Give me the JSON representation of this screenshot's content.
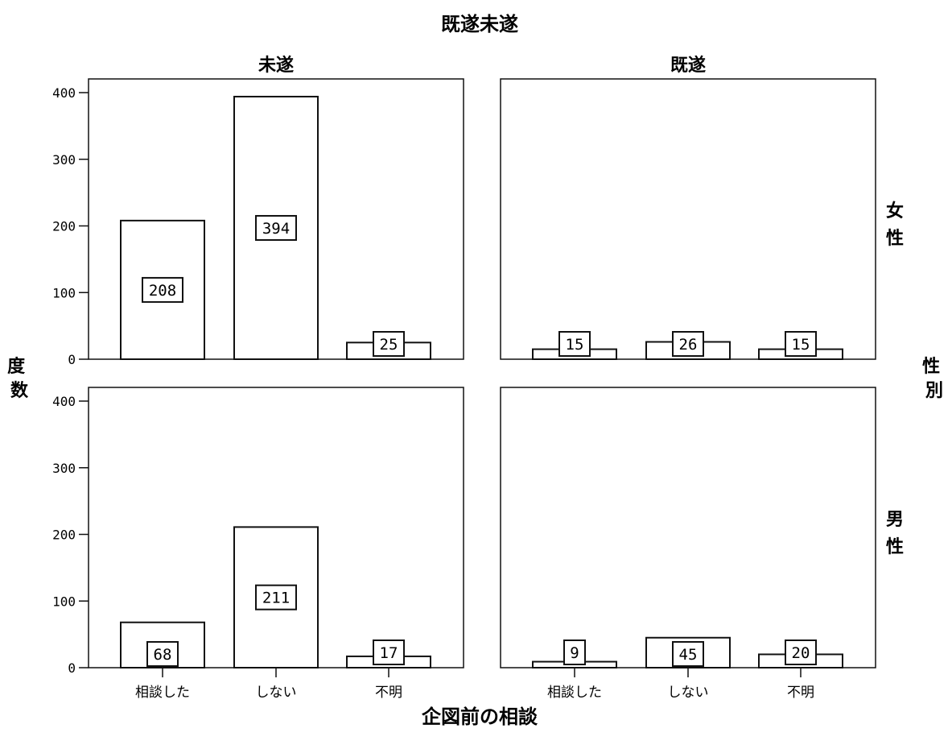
{
  "chart_data": {
    "type": "bar",
    "title": "既遂未遂",
    "xlabel": "企図前の相談",
    "ylabel": "度数",
    "row_facet_label": "性別",
    "ylim": [
      0,
      400
    ],
    "yticks": [
      "0",
      "100",
      "200",
      "300",
      "400"
    ],
    "categories": [
      "相談した",
      "しない",
      "不明"
    ],
    "column_facets": [
      "未遂",
      "既遂"
    ],
    "row_facets": [
      "女性",
      "男性"
    ],
    "panels": [
      {
        "column": "未遂",
        "row": "女性",
        "values": [
          208,
          394,
          25
        ]
      },
      {
        "column": "既遂",
        "row": "女性",
        "values": [
          15,
          26,
          15
        ]
      },
      {
        "column": "未遂",
        "row": "男性",
        "values": [
          68,
          211,
          17
        ]
      },
      {
        "column": "既遂",
        "row": "男性",
        "values": [
          9,
          45,
          20
        ]
      }
    ],
    "grid": false,
    "legend": "none",
    "bar_fill": "#ffffff",
    "stroke_color": "#111111"
  }
}
